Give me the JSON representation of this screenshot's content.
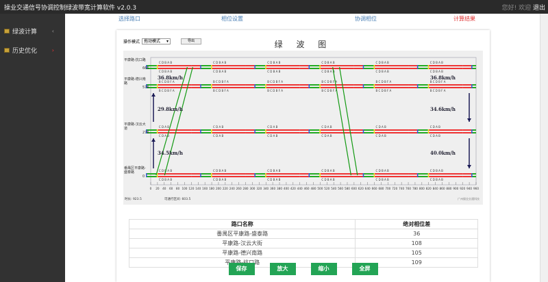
{
  "app": {
    "title": "操业交通信号协调控制绿波带宽计算软件 v2.0.3",
    "user": "您好! 欢迎",
    "logout": "退出"
  },
  "sidebar": {
    "items": [
      {
        "label": "绿波计算",
        "icon": "grid-icon"
      },
      {
        "label": "历史优化",
        "icon": "grid-icon"
      }
    ]
  },
  "steps": [
    {
      "label": "选择路口"
    },
    {
      "label": "相位设置"
    },
    {
      "label": "协调相位"
    },
    {
      "label": "计算结果",
      "active": true
    }
  ],
  "toolbar": {
    "mode_label": "操作模式",
    "mode_value": "拖动模式",
    "export_label": "导出"
  },
  "chart_title": "绿 波 图",
  "chart_data": {
    "type": "green-wave",
    "x_ticks": [
      0,
      20,
      40,
      60,
      80,
      100,
      120,
      140,
      160,
      180,
      200,
      220,
      240,
      260,
      280,
      300,
      320,
      340,
      360,
      380,
      400,
      420,
      440,
      460,
      480,
      500,
      520,
      540,
      560,
      580,
      600,
      620,
      640,
      660,
      680,
      700,
      720,
      740,
      760,
      780,
      800,
      820,
      840,
      860,
      880,
      900,
      920,
      940,
      960
    ],
    "xlim": [
      0,
      960
    ],
    "ylim": [
      0,
      700
    ],
    "intersections": [
      {
        "label": "平康路-抗口路",
        "distance": 665,
        "offset": 0,
        "phases": "C D B A B"
      },
      {
        "label": "平康路-德兴南路",
        "distance": 576,
        "offset": 0,
        "phases": "B C D B F A"
      },
      {
        "label": "平康路-汉云大道",
        "distance": 276,
        "offset": 0,
        "phases": "C D A B"
      },
      {
        "label": "番禺区平康路-盛泰路",
        "distance": 0,
        "offset": 0,
        "phases": "C D B A B"
      }
    ],
    "bands": [
      {
        "dir": "up",
        "lines": [
          [
            [
              16,
              0
            ],
            [
              108,
              665
            ]
          ],
          [
            [
              41,
              0
            ],
            [
              124,
              665
            ]
          ]
        ]
      },
      {
        "dir": "down",
        "lines": [
          [
            [
              537,
              665
            ],
            [
              591,
              0
            ]
          ],
          [
            [
              557,
              665
            ],
            [
              610,
              0
            ]
          ]
        ]
      }
    ],
    "speeds_up": [
      "36.8km/h",
      "29.8km/h",
      "34.5km/h"
    ],
    "speeds_down": [
      "36.8km/h",
      "34.6km/h",
      "40.0km/h"
    ],
    "colors": {
      "red": "#ee3333",
      "green": "#22aa22",
      "yellow": "#eeee22",
      "blue": "#3355dd",
      "band": "#119911",
      "arrow": "#1a1a55"
    }
  },
  "chart_footer": {
    "left1": "时长: 923.5",
    "left2": "可通行区间: 603.5",
    "right": "广州操业交通科技"
  },
  "table": {
    "headers": [
      "路口名称",
      "绝对相位差"
    ],
    "rows": [
      [
        "番禺区平康路-盛泰路",
        "36"
      ],
      [
        "平康路-汉云大街",
        "108"
      ],
      [
        "平康路-德兴南路",
        "105"
      ],
      [
        "平康路-抗口路",
        "109"
      ]
    ]
  },
  "buttons": {
    "save": "保存",
    "zoom_in": "放大",
    "zoom_out": "缩小",
    "fullscreen": "全屏"
  }
}
